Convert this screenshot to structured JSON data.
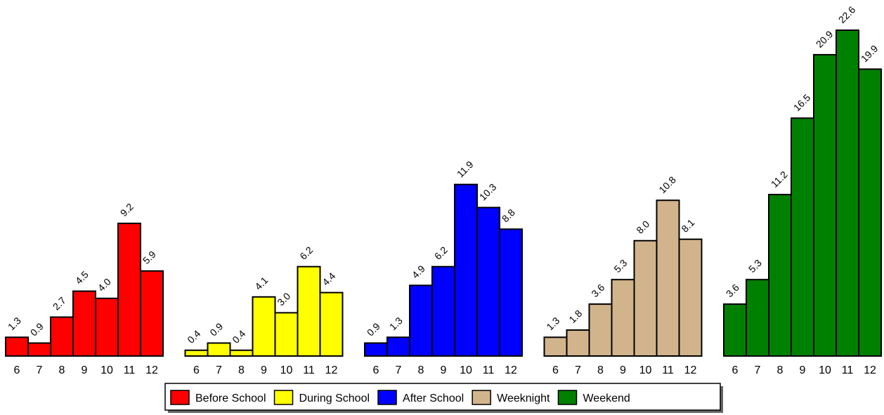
{
  "chart_data": {
    "type": "bar",
    "categories": [
      "6",
      "7",
      "8",
      "9",
      "10",
      "11",
      "12"
    ],
    "series": [
      {
        "name": "Before School",
        "color": "#ff0000",
        "values": [
          1.3,
          0.9,
          2.7,
          4.5,
          4.0,
          9.2,
          5.9
        ],
        "value_labels": [
          "1.3",
          "0.9",
          "2.7",
          "4.5",
          "4.0",
          "9.2",
          "5.9"
        ]
      },
      {
        "name": "During School",
        "color": "#ffff00",
        "values": [
          0.4,
          0.9,
          0.4,
          4.1,
          3.0,
          6.2,
          4.4
        ],
        "value_labels": [
          "0.4",
          "0.9",
          "0.4",
          "4.1",
          "3.0",
          "6.2",
          "4.4"
        ]
      },
      {
        "name": "After School",
        "color": "#0000ff",
        "values": [
          0.9,
          1.3,
          4.9,
          6.2,
          11.9,
          10.3,
          8.8
        ]
      },
      {
        "name": "Weeknight",
        "color": "#d2b48c",
        "values": [
          1.3,
          1.8,
          3.6,
          5.3,
          8.0,
          10.8,
          8.1
        ],
        "value_labels": [
          "1.3",
          "1.8",
          "3.6",
          "5.3",
          "8.0",
          "10.8",
          "8.1"
        ]
      },
      {
        "name": "Weekend",
        "color": "#008000",
        "values": [
          3.6,
          5.3,
          11.2,
          16.5,
          20.9,
          22.6,
          19.9
        ]
      }
    ]
  }
}
